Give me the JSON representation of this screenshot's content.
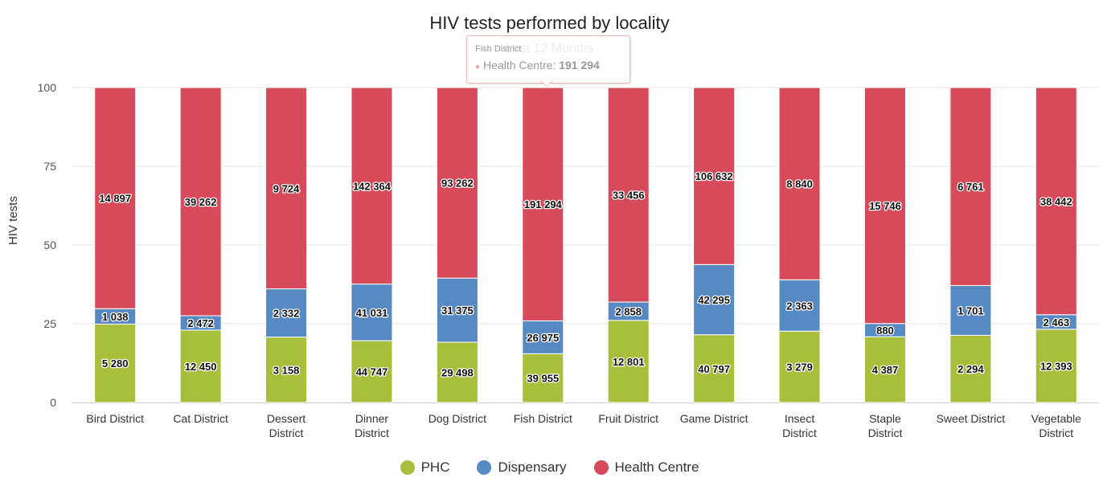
{
  "colors": {
    "phc": "#a8bf3b",
    "dispensary": "#5789c2",
    "health_centre": "#d64a59"
  },
  "tooltip": {
    "category": "Fish District",
    "series": "Health Centre",
    "value": "191 294"
  },
  "chart_data": {
    "type": "bar",
    "stacking": "percent",
    "title": "HIV tests performed by locality",
    "subtitle": "Last 12 Months",
    "xlabel": "",
    "ylabel": "HIV tests",
    "ylim": [
      0,
      100
    ],
    "yticks": [
      0,
      25,
      50,
      75,
      100
    ],
    "grid": true,
    "legend_position": "bottom",
    "categories": [
      "Bird District",
      "Cat District",
      "Dessert District",
      "Dinner District",
      "Dog District",
      "Fish District",
      "Fruit District",
      "Game District",
      "Insect District",
      "Staple District",
      "Sweet District",
      "Vegetable District"
    ],
    "series": [
      {
        "name": "PHC",
        "values": [
          5280,
          12450,
          3158,
          44747,
          29498,
          39955,
          12801,
          40797,
          3279,
          4387,
          2294,
          12393
        ],
        "labels": [
          "5 280",
          "12 450",
          "3 158",
          "44 747",
          "29 498",
          "39 955",
          "12 801",
          "40 797",
          "3 279",
          "4 387",
          "2 294",
          "12 393"
        ]
      },
      {
        "name": "Dispensary",
        "values": [
          1038,
          2472,
          2332,
          41031,
          31375,
          26975,
          2858,
          42295,
          2363,
          880,
          1701,
          2463
        ],
        "labels": [
          "1 038",
          "2 472",
          "2 332",
          "41 031",
          "31 375",
          "26 975",
          "2 858",
          "42 295",
          "2 363",
          "880",
          "1 701",
          "2 463"
        ]
      },
      {
        "name": "Health Centre",
        "values": [
          14897,
          39262,
          9724,
          142364,
          93262,
          191294,
          33456,
          106632,
          8840,
          15746,
          6761,
          38442
        ],
        "labels": [
          "14 897",
          "39 262",
          "9 724",
          "142 364",
          "93 262",
          "191 294",
          "33 456",
          "106 632",
          "8 840",
          "15 746",
          "6 761",
          "38 442"
        ]
      }
    ]
  }
}
